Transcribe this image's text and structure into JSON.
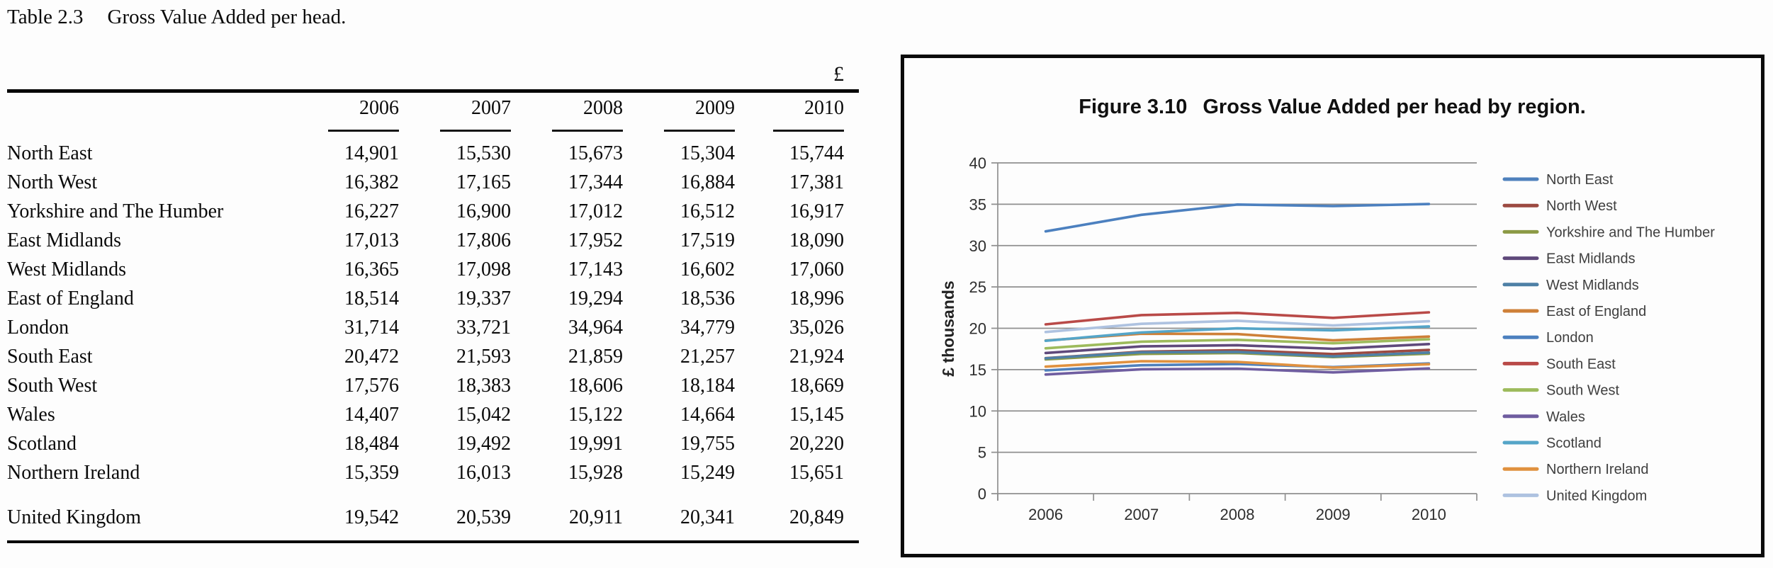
{
  "table": {
    "title_label": "Table 2.3",
    "title_text": "Gross Value Added per head.",
    "currency_symbol": "£",
    "years": [
      "2006",
      "2007",
      "2008",
      "2009",
      "2010"
    ],
    "rows": [
      {
        "name": "North East",
        "values": [
          "14,901",
          "15,530",
          "15,673",
          "15,304",
          "15,744"
        ]
      },
      {
        "name": "North West",
        "values": [
          "16,382",
          "17,165",
          "17,344",
          "16,884",
          "17,381"
        ]
      },
      {
        "name": "Yorkshire and The Humber",
        "values": [
          "16,227",
          "16,900",
          "17,012",
          "16,512",
          "16,917"
        ]
      },
      {
        "name": "East Midlands",
        "values": [
          "17,013",
          "17,806",
          "17,952",
          "17,519",
          "18,090"
        ]
      },
      {
        "name": "West Midlands",
        "values": [
          "16,365",
          "17,098",
          "17,143",
          "16,602",
          "17,060"
        ]
      },
      {
        "name": "East of England",
        "values": [
          "18,514",
          "19,337",
          "19,294",
          "18,536",
          "18,996"
        ]
      },
      {
        "name": "London",
        "values": [
          "31,714",
          "33,721",
          "34,964",
          "34,779",
          "35,026"
        ]
      },
      {
        "name": "South East",
        "values": [
          "20,472",
          "21,593",
          "21,859",
          "21,257",
          "21,924"
        ]
      },
      {
        "name": "South West",
        "values": [
          "17,576",
          "18,383",
          "18,606",
          "18,184",
          "18,669"
        ]
      },
      {
        "name": "Wales",
        "values": [
          "14,407",
          "15,042",
          "15,122",
          "14,664",
          "15,145"
        ]
      },
      {
        "name": "Scotland",
        "values": [
          "18,484",
          "19,492",
          "19,991",
          "19,755",
          "20,220"
        ]
      },
      {
        "name": "Northern Ireland",
        "values": [
          "15,359",
          "16,013",
          "15,928",
          "15,249",
          "15,651"
        ]
      }
    ],
    "footer_row": {
      "name": "United Kingdom",
      "values": [
        "19,542",
        "20,539",
        "20,911",
        "20,341",
        "20,849"
      ]
    }
  },
  "chart": {
    "title_label": "Figure 3.10",
    "title_text": "Gross Value Added per head by region.",
    "y_axis_label": "£ thousands"
  },
  "chart_data": {
    "type": "line",
    "title": "Figure 3.10   Gross Value Added per head by region.",
    "xlabel": "",
    "ylabel": "£ thousands",
    "x": [
      "2006",
      "2007",
      "2008",
      "2009",
      "2010"
    ],
    "ylim": [
      0,
      40
    ],
    "yticks": [
      0,
      5,
      10,
      15,
      20,
      25,
      30,
      35,
      40
    ],
    "grid": true,
    "legend_position": "right",
    "grid_color": "#8F8F8F",
    "axis_text_color": "#2E2E2E",
    "legend_text_color": "#3F3F3F",
    "frame_border_color": "#0B0B0B",
    "series": [
      {
        "name": "North East",
        "color": "#4F81BD",
        "values": [
          14.901,
          15.53,
          15.673,
          15.304,
          15.744
        ]
      },
      {
        "name": "North West",
        "color": "#9C4A41",
        "values": [
          16.382,
          17.165,
          17.344,
          16.884,
          17.381
        ]
      },
      {
        "name": "Yorkshire and The Humber",
        "color": "#8C9A45",
        "values": [
          16.227,
          16.9,
          17.012,
          16.512,
          16.917
        ]
      },
      {
        "name": "East Midlands",
        "color": "#5F497B",
        "values": [
          17.013,
          17.806,
          17.952,
          17.519,
          18.09
        ]
      },
      {
        "name": "West Midlands",
        "color": "#4E80A6",
        "values": [
          16.365,
          17.098,
          17.143,
          16.602,
          17.06
        ]
      },
      {
        "name": "East of England",
        "color": "#CE8038",
        "values": [
          18.514,
          19.337,
          19.294,
          18.536,
          18.996
        ]
      },
      {
        "name": "London",
        "color": "#4C80BF",
        "values": [
          31.714,
          33.721,
          34.964,
          34.779,
          35.026
        ]
      },
      {
        "name": "South East",
        "color": "#B94A48",
        "values": [
          20.472,
          21.593,
          21.859,
          21.257,
          21.924
        ]
      },
      {
        "name": "South West",
        "color": "#9DBB5C",
        "values": [
          17.576,
          18.383,
          18.606,
          18.184,
          18.669
        ]
      },
      {
        "name": "Wales",
        "color": "#6F5DA0",
        "values": [
          14.407,
          15.042,
          15.122,
          14.664,
          15.145
        ]
      },
      {
        "name": "Scotland",
        "color": "#55A5C8",
        "values": [
          18.484,
          19.492,
          19.991,
          19.755,
          20.22
        ]
      },
      {
        "name": "Northern Ireland",
        "color": "#E0913F",
        "values": [
          15.359,
          16.013,
          15.928,
          15.249,
          15.651
        ]
      },
      {
        "name": "United Kingdom",
        "color": "#AEC2E0",
        "values": [
          19.542,
          20.539,
          20.911,
          20.341,
          20.849
        ]
      }
    ]
  }
}
